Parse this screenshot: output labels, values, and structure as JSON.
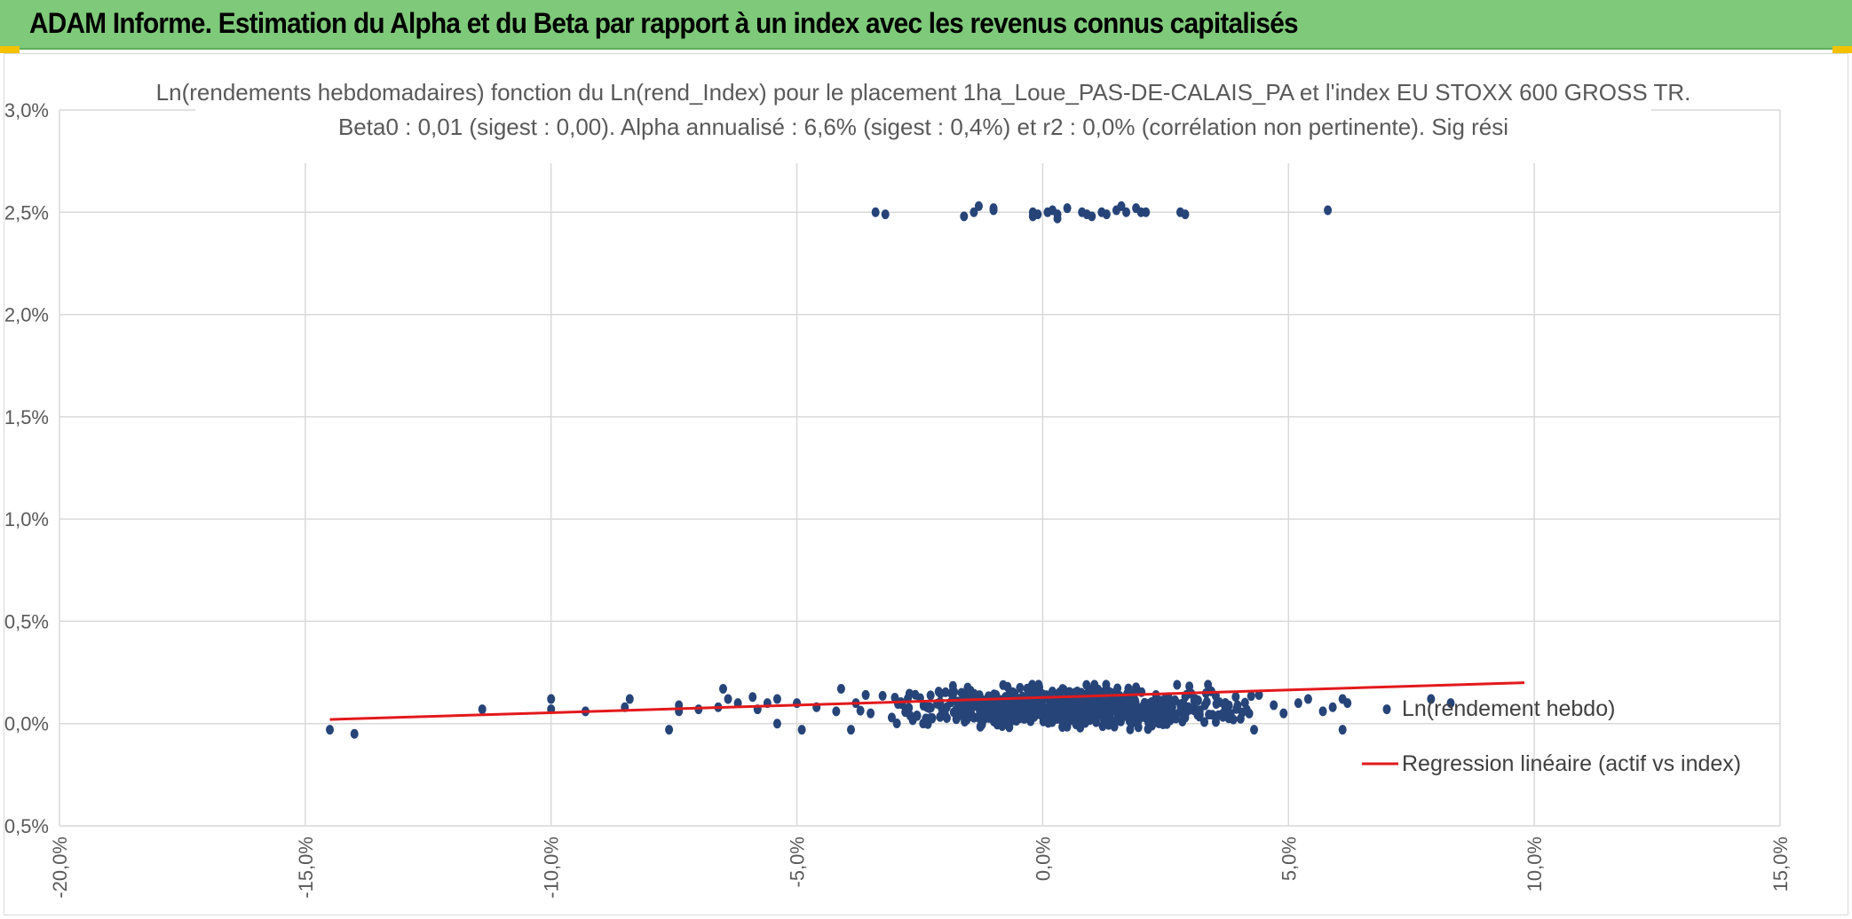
{
  "header": {
    "title": "ADAM Informe. Estimation du Alpha et du Beta par rapport à un index avec les revenus connus capitalisés"
  },
  "colors": {
    "header_bg": "#7ec97a",
    "points": "#264478",
    "regression": "#e3191c",
    "grid": "#d9d9d9"
  },
  "chart_data": {
    "type": "scatter",
    "title": "Ln(rendements hebdomadaires) fonction du Ln(rend_Index) pour le placement 1ha_Loue_PAS-DE-CALAIS_PA et l'index EU STOXX 600 GROSS TR.",
    "subtitle": "Beta0 : 0,01 (sigest : 0,00). Alpha annualisé : 6,6% (sigest : 0,4%) et r2 : 0,0% (corrélation non pertinente). Sig rési",
    "xlabel": "",
    "ylabel": "",
    "xlim": [
      -20,
      15
    ],
    "ylim": [
      -0.5,
      3.0
    ],
    "x_ticks": [
      "-20,0%",
      "-15,0%",
      "-10,0%",
      "-5,0%",
      "0,0%",
      "5,0%",
      "10,0%",
      "15,0%"
    ],
    "y_ticks": [
      "3,0%",
      "2,5%",
      "2,0%",
      "1,5%",
      "1,0%",
      "0,5%",
      "0,0%",
      "-0,5%"
    ],
    "grid": true,
    "legend_position": "right",
    "series": [
      {
        "name": "Ln(rendement hebdo)",
        "kind": "points",
        "points": [
          [
            -14.5,
            -0.03
          ],
          [
            -14.0,
            -0.05
          ],
          [
            -11.4,
            0.07
          ],
          [
            -10.0,
            0.12
          ],
          [
            -10.0,
            0.07
          ],
          [
            -9.3,
            0.06
          ],
          [
            -8.5,
            0.08
          ],
          [
            -8.4,
            0.12
          ],
          [
            -7.6,
            -0.03
          ],
          [
            -7.4,
            0.09
          ],
          [
            -7.4,
            0.06
          ],
          [
            -7.0,
            0.07
          ],
          [
            -6.6,
            0.08
          ],
          [
            -6.5,
            0.17
          ],
          [
            -6.4,
            0.12
          ],
          [
            -6.2,
            0.1
          ],
          [
            -5.9,
            0.13
          ],
          [
            -5.8,
            0.07
          ],
          [
            -5.6,
            0.1
          ],
          [
            -5.4,
            0.12
          ],
          [
            -5.4,
            0.0
          ],
          [
            -5.0,
            0.1
          ],
          [
            -4.9,
            -0.03
          ],
          [
            -4.6,
            0.08
          ],
          [
            -4.2,
            0.06
          ],
          [
            -4.1,
            0.17
          ],
          [
            -3.9,
            -0.03
          ],
          [
            -3.8,
            0.1
          ],
          [
            -3.6,
            0.14
          ],
          [
            -3.5,
            0.05
          ],
          [
            6.1,
            0.12
          ],
          [
            6.1,
            -0.03
          ],
          [
            6.2,
            0.1
          ],
          [
            5.9,
            0.08
          ],
          [
            5.7,
            0.06
          ],
          [
            5.4,
            0.12
          ],
          [
            5.2,
            0.1
          ],
          [
            4.9,
            0.05
          ],
          [
            4.7,
            0.09
          ],
          [
            4.4,
            0.14
          ],
          [
            4.3,
            -0.03
          ],
          [
            7.9,
            0.12
          ],
          [
            8.3,
            0.1
          ],
          [
            7.0,
            0.07
          ],
          [
            -3.4,
            2.5
          ],
          [
            -3.2,
            2.49
          ],
          [
            -1.6,
            2.48
          ],
          [
            -1.4,
            2.5
          ],
          [
            -1.3,
            2.53
          ],
          [
            -1.0,
            2.51
          ],
          [
            -1.0,
            2.52
          ],
          [
            -0.2,
            2.5
          ],
          [
            -0.2,
            2.48
          ],
          [
            -0.1,
            2.49
          ],
          [
            0.1,
            2.5
          ],
          [
            0.2,
            2.51
          ],
          [
            0.3,
            2.49
          ],
          [
            0.3,
            2.47
          ],
          [
            0.5,
            2.52
          ],
          [
            0.8,
            2.5
          ],
          [
            0.9,
            2.49
          ],
          [
            1.0,
            2.48
          ],
          [
            1.2,
            2.5
          ],
          [
            1.3,
            2.49
          ],
          [
            1.5,
            2.51
          ],
          [
            1.6,
            2.53
          ],
          [
            1.7,
            2.5
          ],
          [
            1.9,
            2.52
          ],
          [
            2.0,
            2.5
          ],
          [
            2.1,
            2.5
          ],
          [
            2.8,
            2.5
          ],
          [
            2.9,
            2.49
          ],
          [
            5.8,
            2.51
          ]
        ],
        "dense_cluster": {
          "count": 700,
          "x_mean": 0.5,
          "x_sd": 1.6,
          "x_range": [
            -4.0,
            5.0
          ],
          "y_range": [
            -0.05,
            0.19
          ],
          "y_mean": 0.08
        }
      },
      {
        "name": "Regression linéaire (actif vs index)",
        "kind": "line",
        "points": [
          [
            -14.5,
            0.02
          ],
          [
            9.8,
            0.2
          ]
        ]
      }
    ]
  }
}
